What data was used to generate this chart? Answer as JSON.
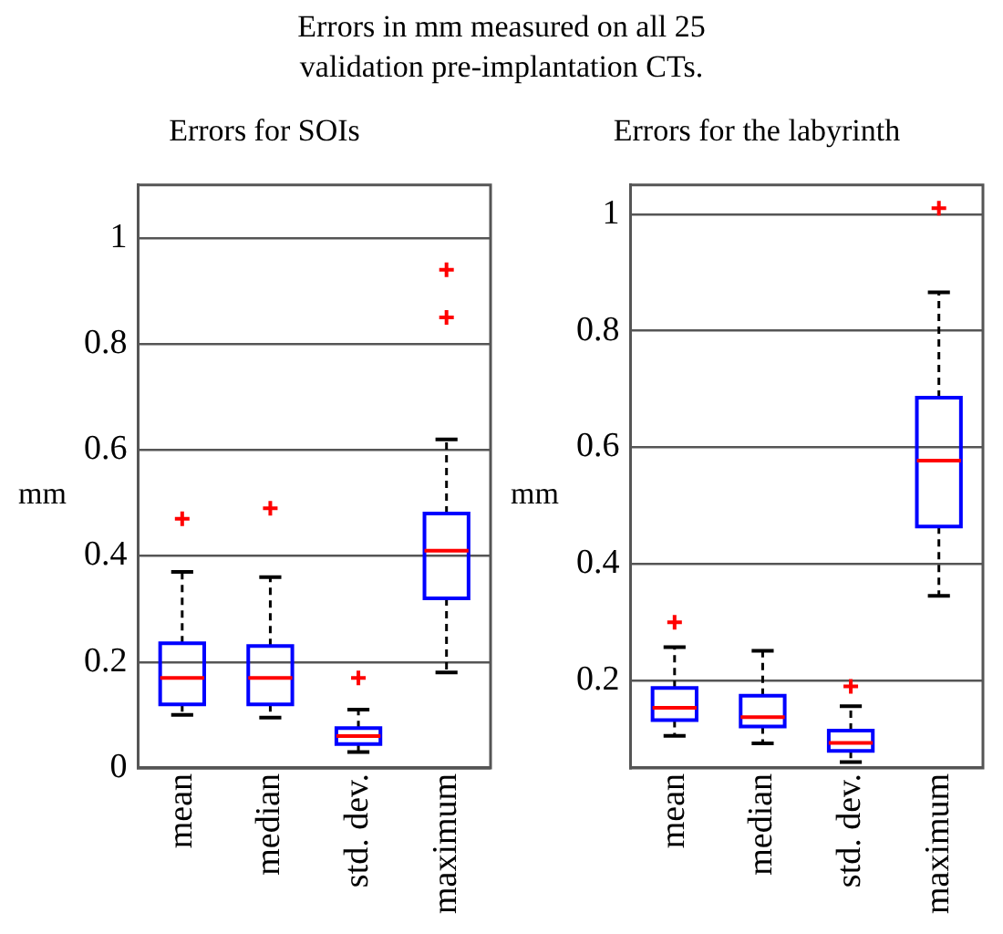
{
  "chart_data": [
    {
      "type": "box",
      "title": "Errors for SOIs",
      "ylabel": "mm",
      "annotations": [
        "Errors in mm measured on all 25\nvalidation pre-implantation CTs."
      ],
      "categories": [
        "mean",
        "median",
        "std. dev.",
        "maximum"
      ],
      "series": [
        {
          "color": "#0000ff",
          "boxes": [
            {
              "low": 0.1,
              "q1": 0.12,
              "median": 0.17,
              "q3": 0.235,
              "high": 0.37,
              "outliers": [
                0.47
              ]
            },
            {
              "low": 0.095,
              "q1": 0.12,
              "median": 0.17,
              "q3": 0.23,
              "high": 0.36,
              "outliers": [
                0.49
              ]
            },
            {
              "low": 0.03,
              "q1": 0.045,
              "median": 0.06,
              "q3": 0.075,
              "high": 0.11,
              "outliers": [
                0.17
              ]
            },
            {
              "low": 0.18,
              "q1": 0.32,
              "median": 0.41,
              "q3": 0.48,
              "high": 0.62,
              "outliers": [
                0.85,
                0.94
              ]
            }
          ]
        }
      ],
      "ylim": [
        0,
        1.1
      ],
      "yticks": [
        0,
        0.2,
        0.4,
        0.6,
        0.8,
        1
      ],
      "grid": "y",
      "legend": false
    },
    {
      "type": "box",
      "title": "Errors for the labyrinth",
      "ylabel": "mm",
      "categories": [
        "mean",
        "median",
        "std. dev.",
        "maximum"
      ],
      "series": [
        {
          "color": "#0000ff",
          "boxes": [
            {
              "low": 0.105,
              "q1": 0.132,
              "median": 0.153,
              "q3": 0.187,
              "high": 0.257,
              "outliers": [
                0.3
              ]
            },
            {
              "low": 0.092,
              "q1": 0.121,
              "median": 0.137,
              "q3": 0.174,
              "high": 0.251
            },
            {
              "low": 0.06,
              "q1": 0.079,
              "median": 0.093,
              "q3": 0.114,
              "high": 0.156,
              "outliers": [
                0.19
              ]
            },
            {
              "low": 0.345,
              "q1": 0.464,
              "median": 0.577,
              "q3": 0.685,
              "high": 0.866,
              "outliers": [
                1.01
              ]
            }
          ]
        }
      ],
      "ylim": [
        0.05,
        1.05
      ],
      "yticks": [
        0.2,
        0.4,
        0.6,
        0.8,
        1
      ],
      "grid": "y",
      "legend": false
    }
  ]
}
